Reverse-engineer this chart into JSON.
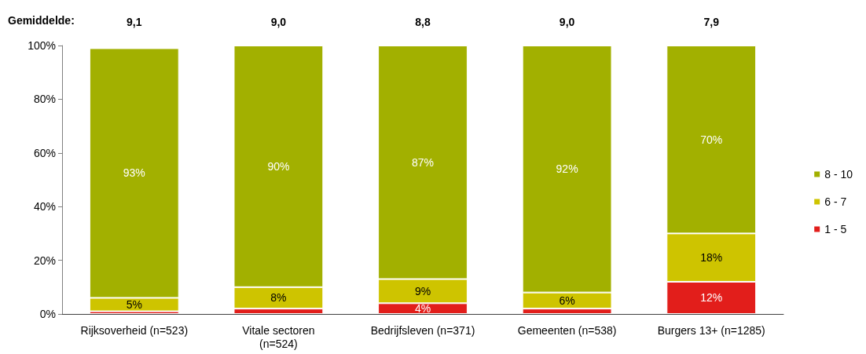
{
  "chart_data": {
    "type": "bar",
    "stacked": true,
    "legend": "right",
    "categories": [
      "Rijksoverheid (n=523)",
      "Vitale sectoren\n(n=524)",
      "Bedrijfsleven (n=371)",
      "Gemeenten (n=538)",
      "Burgers 13+ (n=1285)"
    ],
    "series": [
      {
        "name": "1 - 5",
        "color": "#e21e1b",
        "values": [
          1,
          2,
          4,
          2,
          12
        ],
        "value_labels": [
          null,
          null,
          "4%",
          null,
          "12%"
        ]
      },
      {
        "name": "6 - 7",
        "color": "#cec400",
        "values": [
          5,
          8,
          9,
          6,
          18
        ],
        "value_labels": [
          "5%",
          "8%",
          "9%",
          "6%",
          "18%"
        ]
      },
      {
        "name": "8 - 10",
        "color": "#a2b000",
        "values": [
          93,
          90,
          87,
          92,
          70
        ],
        "value_labels": [
          "93%",
          "90%",
          "87%",
          "92%",
          "70%"
        ]
      }
    ],
    "ylim": [
      0,
      100
    ],
    "yticks": [
      {
        "value": 0,
        "label": "0%"
      },
      {
        "value": 20,
        "label": "20%"
      },
      {
        "value": 40,
        "label": "40%"
      },
      {
        "value": 60,
        "label": "60%"
      },
      {
        "value": 80,
        "label": "80%"
      },
      {
        "value": 100,
        "label": "100%"
      }
    ],
    "annotations": [
      "Gemiddelde:",
      "9,1",
      "9,0",
      "8,8",
      "9,0",
      "7,9"
    ]
  }
}
